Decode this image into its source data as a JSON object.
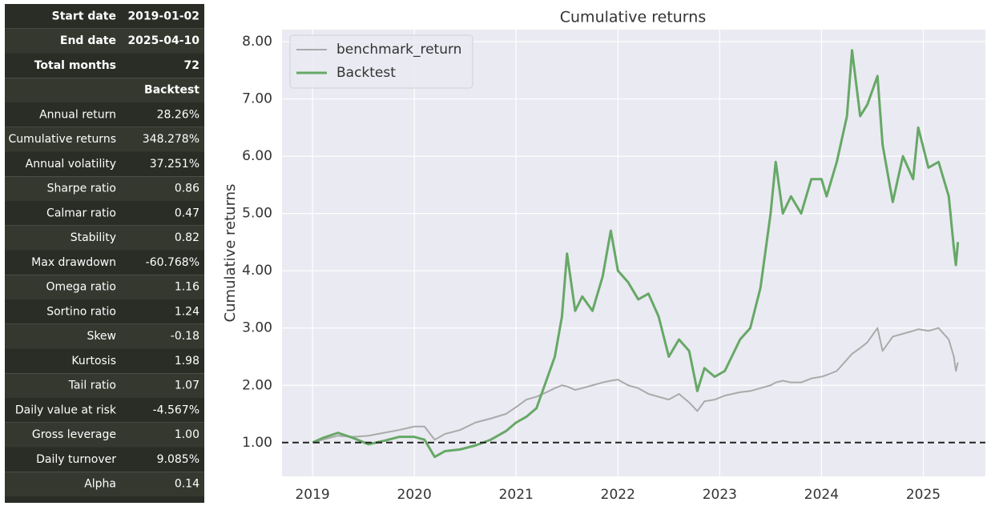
{
  "table": {
    "info_rows": [
      [
        "Start date",
        "2019-01-02"
      ],
      [
        "End date",
        "2025-04-10"
      ],
      [
        "Total months",
        "72"
      ]
    ],
    "column_header": "Backtest",
    "rows": [
      [
        "Annual return",
        "28.26%"
      ],
      [
        "Cumulative returns",
        "348.278%"
      ],
      [
        "Annual volatility",
        "37.251%"
      ],
      [
        "Sharpe ratio",
        "0.86"
      ],
      [
        "Calmar ratio",
        "0.47"
      ],
      [
        "Stability",
        "0.82"
      ],
      [
        "Max drawdown",
        "-60.768%"
      ],
      [
        "Omega ratio",
        "1.16"
      ],
      [
        "Sortino ratio",
        "1.24"
      ],
      [
        "Skew",
        "-0.18"
      ],
      [
        "Kurtosis",
        "1.98"
      ],
      [
        "Tail ratio",
        "1.07"
      ],
      [
        "Daily value at risk",
        "-4.567%"
      ],
      [
        "Gross leverage",
        "1.00"
      ],
      [
        "Daily turnover",
        "9.085%"
      ],
      [
        "Alpha",
        "0.14"
      ]
    ]
  },
  "chart_data": {
    "type": "line",
    "title": "Cumulative returns",
    "y_label": "Cumulative returns",
    "x": [
      2019.0,
      2019.1,
      2019.25,
      2019.4,
      2019.55,
      2019.7,
      2019.85,
      2020.0,
      2020.1,
      2020.2,
      2020.3,
      2020.45,
      2020.6,
      2020.75,
      2020.9,
      2021.0,
      2021.1,
      2021.2,
      2021.3,
      2021.38,
      2021.45,
      2021.5,
      2021.58,
      2021.65,
      2021.75,
      2021.85,
      2021.93,
      2022.0,
      2022.1,
      2022.2,
      2022.3,
      2022.4,
      2022.5,
      2022.6,
      2022.7,
      2022.78,
      2022.85,
      2022.95,
      2023.05,
      2023.2,
      2023.3,
      2023.4,
      2023.5,
      2023.55,
      2023.62,
      2023.7,
      2023.8,
      2023.9,
      2024.0,
      2024.05,
      2024.15,
      2024.25,
      2024.3,
      2024.38,
      2024.45,
      2024.55,
      2024.6,
      2024.7,
      2024.8,
      2024.9,
      2024.95,
      2025.05,
      2025.15,
      2025.25,
      2025.3,
      2025.32,
      2025.34
    ],
    "series": [
      {
        "name": "benchmark_return",
        "color": "#aaaaaa",
        "width": 2,
        "values": [
          1.0,
          1.05,
          1.12,
          1.1,
          1.12,
          1.17,
          1.22,
          1.28,
          1.28,
          1.05,
          1.15,
          1.22,
          1.35,
          1.42,
          1.5,
          1.62,
          1.75,
          1.8,
          1.88,
          1.95,
          2.0,
          1.98,
          1.92,
          1.95,
          2.0,
          2.05,
          2.08,
          2.1,
          2.0,
          1.95,
          1.85,
          1.8,
          1.75,
          1.85,
          1.7,
          1.55,
          1.72,
          1.75,
          1.82,
          1.88,
          1.9,
          1.95,
          2.0,
          2.05,
          2.08,
          2.05,
          2.05,
          2.12,
          2.15,
          2.18,
          2.25,
          2.45,
          2.55,
          2.65,
          2.75,
          3.0,
          2.6,
          2.85,
          2.9,
          2.95,
          2.98,
          2.95,
          3.0,
          2.8,
          2.5,
          2.25,
          2.4
        ]
      },
      {
        "name": "Backtest",
        "color": "#66a866",
        "width": 3,
        "values": [
          1.0,
          1.08,
          1.17,
          1.08,
          0.97,
          1.03,
          1.1,
          1.1,
          1.05,
          0.75,
          0.85,
          0.88,
          0.95,
          1.05,
          1.2,
          1.35,
          1.45,
          1.6,
          2.1,
          2.5,
          3.2,
          4.3,
          3.3,
          3.55,
          3.3,
          3.9,
          4.7,
          4.0,
          3.8,
          3.5,
          3.6,
          3.2,
          2.5,
          2.8,
          2.6,
          1.9,
          2.3,
          2.15,
          2.25,
          2.8,
          3.0,
          3.7,
          5.0,
          5.9,
          5.0,
          5.3,
          5.0,
          5.6,
          5.6,
          5.3,
          5.9,
          6.7,
          7.85,
          6.7,
          6.9,
          7.4,
          6.2,
          5.2,
          6.0,
          5.6,
          6.5,
          5.8,
          5.9,
          5.3,
          4.4,
          4.1,
          4.5
        ]
      }
    ],
    "xlim": [
      2018.7,
      2025.61
    ],
    "xticks": [
      2019,
      2020,
      2021,
      2022,
      2023,
      2024,
      2025
    ],
    "ylim": [
      0.41,
      8.21
    ],
    "yticks": [
      {
        "value": 1,
        "label": "1.00"
      },
      {
        "value": 2,
        "label": "2.00"
      },
      {
        "value": 3,
        "label": "3.00"
      },
      {
        "value": 4,
        "label": "4.00"
      },
      {
        "value": 5,
        "label": "5.00"
      },
      {
        "value": 6,
        "label": "6.00"
      },
      {
        "value": 7,
        "label": "7.00"
      },
      {
        "value": 8,
        "label": "8.00"
      }
    ],
    "hline": 1,
    "grid": true,
    "legend": "upper-left"
  }
}
